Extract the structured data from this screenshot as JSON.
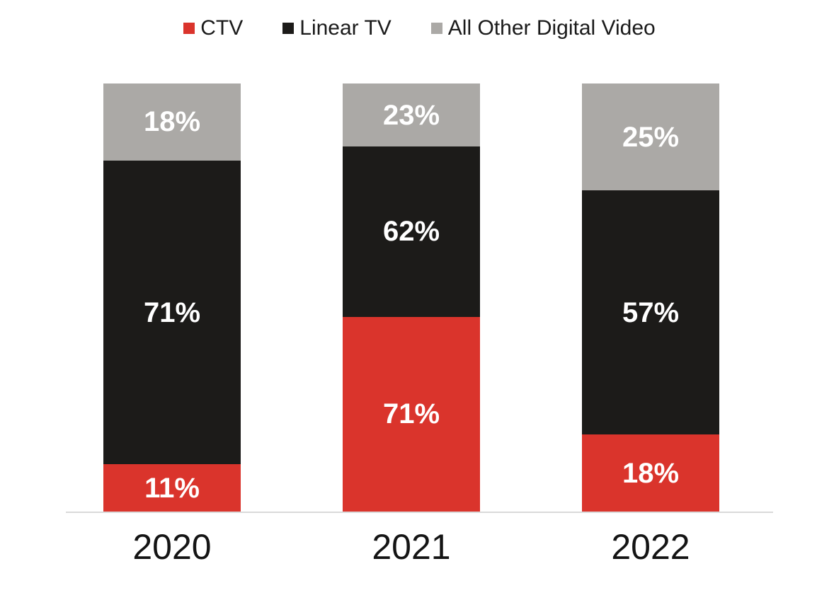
{
  "chart_data": {
    "type": "bar",
    "stacked": true,
    "categories": [
      "2020",
      "2021",
      "2022"
    ],
    "series": [
      {
        "name": "CTV",
        "color": "#da342c",
        "values": [
          11,
          71,
          18
        ]
      },
      {
        "name": "Linear TV",
        "color": "#1c1b19",
        "values": [
          71,
          62,
          57
        ]
      },
      {
        "name": "All Other Digital Video",
        "color": "#aba9a6",
        "values": [
          18,
          23,
          25
        ]
      }
    ],
    "value_suffix": "%",
    "ylim": [
      0,
      100
    ],
    "grid": false,
    "legend_position": "top",
    "axis_line_color": "#d9d9d9",
    "data_label_color": "#ffffff"
  }
}
